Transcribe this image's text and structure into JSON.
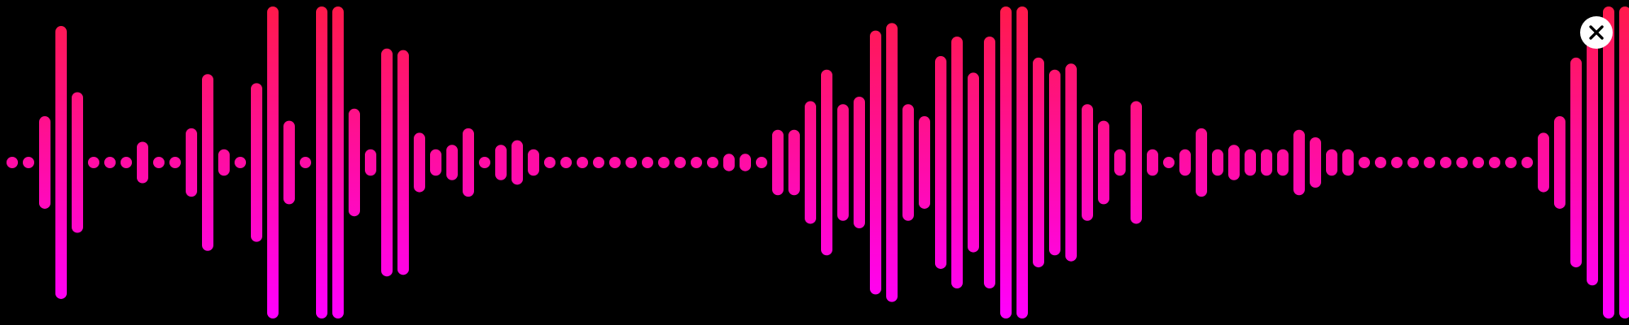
{
  "visualizer": {
    "max_level": 1.0,
    "colors": {
      "background": "#000000",
      "bar_low": "#ff00ff",
      "bar_high": "#ff1a4a",
      "close_bg": "#ffffff",
      "close_fg": "#000000"
    },
    "levels": [
      0.0,
      0.0,
      0.27,
      0.87,
      0.43,
      0.0,
      0.0,
      0.0,
      0.1,
      0.0,
      0.0,
      0.19,
      0.55,
      0.05,
      0.0,
      0.49,
      1.0,
      0.24,
      0.0,
      1.0,
      1.0,
      0.32,
      0.05,
      0.72,
      0.71,
      0.16,
      0.05,
      0.08,
      0.19,
      0.0,
      0.08,
      0.11,
      0.05,
      0.0,
      0.0,
      0.0,
      0.0,
      0.0,
      0.0,
      0.0,
      0.0,
      0.0,
      0.0,
      0.0,
      0.02,
      0.02,
      0.0,
      0.18,
      0.18,
      0.37,
      0.58,
      0.35,
      0.4,
      0.84,
      0.89,
      0.35,
      0.27,
      0.67,
      0.8,
      0.56,
      0.8,
      1.0,
      1.0,
      0.66,
      0.58,
      0.62,
      0.35,
      0.24,
      0.05,
      0.37,
      0.05,
      0.0,
      0.05,
      0.19,
      0.05,
      0.08,
      0.05,
      0.05,
      0.05,
      0.18,
      0.13,
      0.05,
      0.05,
      0.0,
      0.0,
      0.0,
      0.0,
      0.0,
      0.0,
      0.0,
      0.0,
      0.0,
      0.0,
      0.0,
      0.16,
      0.27,
      0.66,
      0.78,
      1.0,
      1.0
    ]
  },
  "close_button": {
    "icon": "close-icon"
  }
}
